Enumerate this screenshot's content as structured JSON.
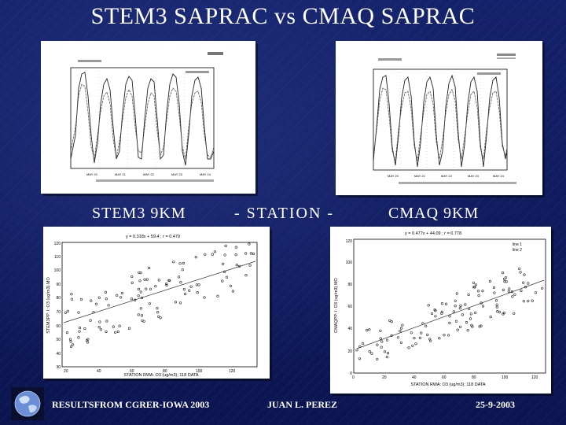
{
  "slide": {
    "title": "STEM3 SAPRAC vs CMAQ SAPRAC",
    "captions": {
      "left": "STEM3 9KM",
      "middle": "- STATION -",
      "right": "CMAQ 9KM"
    },
    "footer": {
      "left": "RESULTSFROM CGRER-IOWA 2003",
      "middle": "JUAN L. PEREZ",
      "right": "25-9-2003"
    },
    "logo_icon": "globe-icon"
  },
  "scatter_left": {
    "ylabel": "STEM3PP: I: O3 (ug/m3) MO",
    "xlabel": "STATION RWA: O3 (ug/m3); 118 DATA",
    "equation": "y = 0.318x + 59.4 ; r = 0.479",
    "x_ticks": [
      "20",
      "40",
      "60",
      "80",
      "100",
      "120"
    ],
    "y_ticks": [
      "30",
      "40",
      "50",
      "60",
      "70",
      "80",
      "90",
      "100",
      "110",
      "120"
    ]
  },
  "scatter_right": {
    "ylabel": "CMAQPP: I: O3 (ug/m3) MO",
    "xlabel": "STATION RWA: O3 (ug/m3); 118 DATA",
    "equation": "y = 0.477x + 44.09 ; r = 0.778",
    "legend": [
      "line 1",
      "line 2"
    ],
    "x_ticks": [
      "0",
      "20",
      "40",
      "60",
      "80",
      "100",
      "120"
    ],
    "y_ticks": [
      "0",
      "20",
      "40",
      "60",
      "80",
      "100",
      "120"
    ]
  },
  "timeseries_left": {
    "x_ticks": [
      "MAY 20",
      "MAY 21",
      "MAY 22",
      "MAY 23",
      "MAY 24"
    ]
  },
  "timeseries_right": {
    "x_ticks": [
      "MAY 20",
      "MAY 21",
      "MAY 22",
      "MAY 23",
      "MAY 24"
    ]
  }
}
